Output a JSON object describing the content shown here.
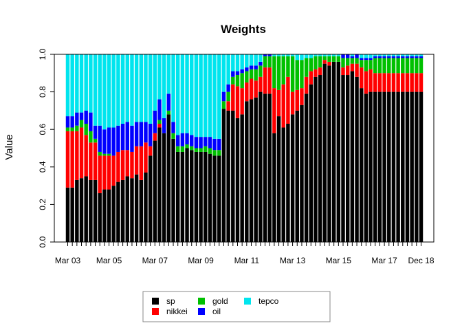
{
  "chart_data": {
    "type": "bar",
    "stacked": true,
    "title": "Weights",
    "xlabel": "",
    "ylabel": "Value",
    "ylim": [
      0,
      1
    ],
    "yticks": [
      "0.0",
      "0.2",
      "0.4",
      "0.6",
      "0.8",
      "1.0"
    ],
    "xtick_labels": [
      {
        "label": "Mar 03",
        "index": 0
      },
      {
        "label": "Mar 05",
        "index": 9
      },
      {
        "label": "Mar 07",
        "index": 19
      },
      {
        "label": "Mar 09",
        "index": 29
      },
      {
        "label": "Mar 11",
        "index": 39
      },
      {
        "label": "Mar 13",
        "index": 49
      },
      {
        "label": "Mar 15",
        "index": 59
      },
      {
        "label": "Mar 17",
        "index": 69
      },
      {
        "label": "Dec 18",
        "index": 77
      }
    ],
    "num_bars": 78,
    "legend_position": "bottom",
    "series": [
      {
        "name": "sp",
        "color": "#000000",
        "values": [
          0.29,
          0.29,
          0.33,
          0.34,
          0.35,
          0.33,
          0.33,
          0.26,
          0.28,
          0.28,
          0.3,
          0.32,
          0.33,
          0.35,
          0.34,
          0.36,
          0.33,
          0.37,
          0.46,
          0.54,
          0.61,
          0.58,
          0.68,
          0.55,
          0.48,
          0.48,
          0.5,
          0.49,
          0.48,
          0.48,
          0.48,
          0.47,
          0.46,
          0.46,
          0.71,
          0.7,
          0.7,
          0.66,
          0.68,
          0.75,
          0.76,
          0.77,
          0.8,
          0.79,
          0.79,
          0.58,
          0.67,
          0.61,
          0.63,
          0.68,
          0.7,
          0.73,
          0.79,
          0.84,
          0.88,
          0.89,
          0.95,
          0.94,
          0.96,
          0.96,
          0.89,
          0.89,
          0.91,
          0.88,
          0.82,
          0.79,
          0.8,
          0.8,
          0.8,
          0.8,
          0.8,
          0.8,
          0.8,
          0.8,
          0.8,
          0.8,
          0.8,
          0.8
        ]
      },
      {
        "name": "nikkei",
        "color": "#ff0000",
        "values": [
          0.3,
          0.3,
          0.26,
          0.27,
          0.22,
          0.2,
          0.2,
          0.2,
          0.18,
          0.18,
          0.16,
          0.16,
          0.16,
          0.14,
          0.14,
          0.15,
          0.18,
          0.16,
          0.05,
          0.04,
          0.02,
          0.0,
          0.0,
          0.0,
          0.0,
          0.0,
          0.0,
          0.0,
          0.0,
          0.0,
          0.0,
          0.0,
          0.0,
          0.0,
          0.0,
          0.05,
          0.14,
          0.17,
          0.14,
          0.1,
          0.11,
          0.09,
          0.08,
          0.14,
          0.14,
          0.24,
          0.14,
          0.23,
          0.25,
          0.12,
          0.11,
          0.09,
          0.09,
          0.07,
          0.04,
          0.04,
          0.02,
          0.02,
          0.0,
          0.0,
          0.04,
          0.05,
          0.04,
          0.07,
          0.11,
          0.12,
          0.12,
          0.1,
          0.1,
          0.1,
          0.1,
          0.1,
          0.1,
          0.1,
          0.1,
          0.1,
          0.1,
          0.1
        ]
      },
      {
        "name": "gold",
        "color": "#00c000",
        "values": [
          0.02,
          0.02,
          0.03,
          0.04,
          0.06,
          0.06,
          0.02,
          0.02,
          0.01,
          0.01,
          0.0,
          0.0,
          0.0,
          0.0,
          0.0,
          0.0,
          0.0,
          0.0,
          0.0,
          0.0,
          0.02,
          0.0,
          0.02,
          0.03,
          0.03,
          0.03,
          0.02,
          0.02,
          0.02,
          0.02,
          0.03,
          0.03,
          0.03,
          0.03,
          0.04,
          0.05,
          0.04,
          0.06,
          0.08,
          0.06,
          0.05,
          0.06,
          0.06,
          0.06,
          0.06,
          0.17,
          0.18,
          0.15,
          0.11,
          0.19,
          0.16,
          0.15,
          0.1,
          0.07,
          0.07,
          0.06,
          0.02,
          0.03,
          0.03,
          0.03,
          0.05,
          0.04,
          0.03,
          0.03,
          0.04,
          0.06,
          0.05,
          0.08,
          0.08,
          0.08,
          0.08,
          0.08,
          0.08,
          0.08,
          0.08,
          0.08,
          0.08,
          0.08
        ]
      },
      {
        "name": "oil",
        "color": "#0000ff",
        "values": [
          0.06,
          0.06,
          0.07,
          0.04,
          0.07,
          0.1,
          0.07,
          0.14,
          0.13,
          0.14,
          0.15,
          0.14,
          0.14,
          0.15,
          0.14,
          0.13,
          0.13,
          0.11,
          0.12,
          0.12,
          0.11,
          0.08,
          0.09,
          0.06,
          0.06,
          0.07,
          0.06,
          0.06,
          0.06,
          0.06,
          0.05,
          0.06,
          0.06,
          0.06,
          0.05,
          0.04,
          0.03,
          0.02,
          0.02,
          0.02,
          0.02,
          0.02,
          0.02,
          0.01,
          0.01,
          0.0,
          0.0,
          0.0,
          0.0,
          0.0,
          0.0,
          0.0,
          0.0,
          0.0,
          0.0,
          0.0,
          0.0,
          0.0,
          0.0,
          0.0,
          0.02,
          0.02,
          0.01,
          0.02,
          0.01,
          0.01,
          0.01,
          0.01,
          0.01,
          0.01,
          0.01,
          0.01,
          0.01,
          0.01,
          0.01,
          0.01,
          0.01,
          0.01
        ]
      },
      {
        "name": "tepco",
        "color": "#00e5ee",
        "values": [
          0.33,
          0.33,
          0.31,
          0.31,
          0.3,
          0.31,
          0.38,
          0.38,
          0.4,
          0.39,
          0.39,
          0.38,
          0.37,
          0.36,
          0.38,
          0.36,
          0.36,
          0.36,
          0.37,
          0.3,
          0.24,
          0.34,
          0.21,
          0.36,
          0.43,
          0.42,
          0.42,
          0.43,
          0.44,
          0.44,
          0.44,
          0.44,
          0.45,
          0.45,
          0.2,
          0.16,
          0.09,
          0.09,
          0.08,
          0.07,
          0.06,
          0.06,
          0.04,
          0.0,
          0.0,
          0.01,
          0.01,
          0.01,
          0.01,
          0.01,
          0.03,
          0.03,
          0.02,
          0.02,
          0.01,
          0.01,
          0.01,
          0.01,
          0.01,
          0.01,
          0.0,
          0.0,
          0.01,
          0.0,
          0.02,
          0.02,
          0.02,
          0.01,
          0.01,
          0.01,
          0.01,
          0.01,
          0.01,
          0.01,
          0.01,
          0.01,
          0.01,
          0.01
        ]
      }
    ]
  }
}
